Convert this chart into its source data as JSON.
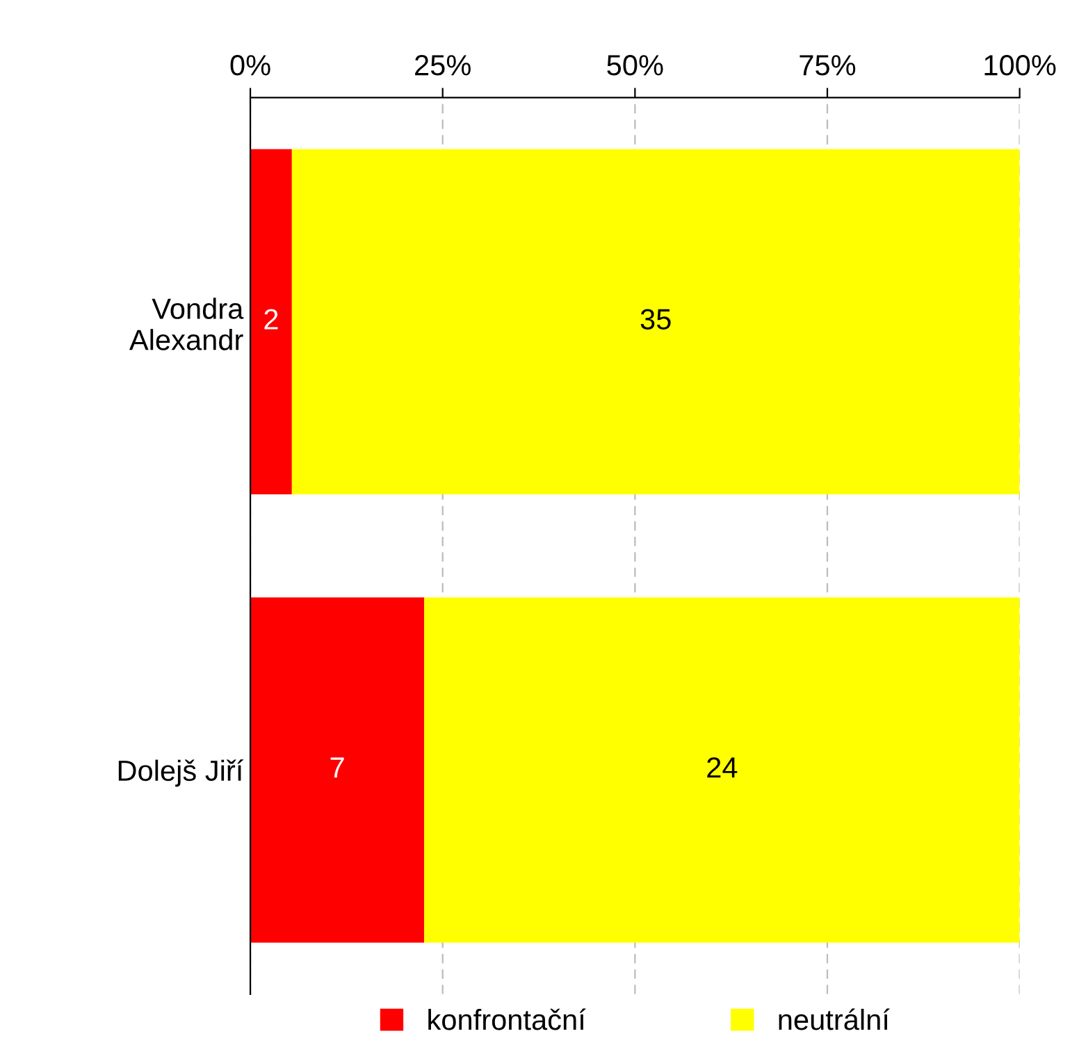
{
  "chart_data": {
    "type": "bar",
    "orientation": "horizontal",
    "stacked": true,
    "categories": [
      "Vondra\nAlexandr",
      "Dolejš Jiří"
    ],
    "series": [
      {
        "name": "konfrontační",
        "color": "#ff0000",
        "values": [
          5.4,
          22.6
        ]
      },
      {
        "name": "neutrální",
        "color": "#ffff00",
        "values": [
          94.6,
          77.4
        ]
      }
    ],
    "annotations": [
      "2",
      "35",
      "7",
      "24"
    ],
    "xlim": [
      0,
      100
    ],
    "xticks": [
      {
        "value": 0,
        "label": "0%"
      },
      {
        "value": 25,
        "label": "25%"
      },
      {
        "value": 50,
        "label": "50%"
      },
      {
        "value": 75,
        "label": "75%"
      },
      {
        "value": 100,
        "label": "100%"
      }
    ],
    "grid": "x",
    "legend": "bottom"
  }
}
